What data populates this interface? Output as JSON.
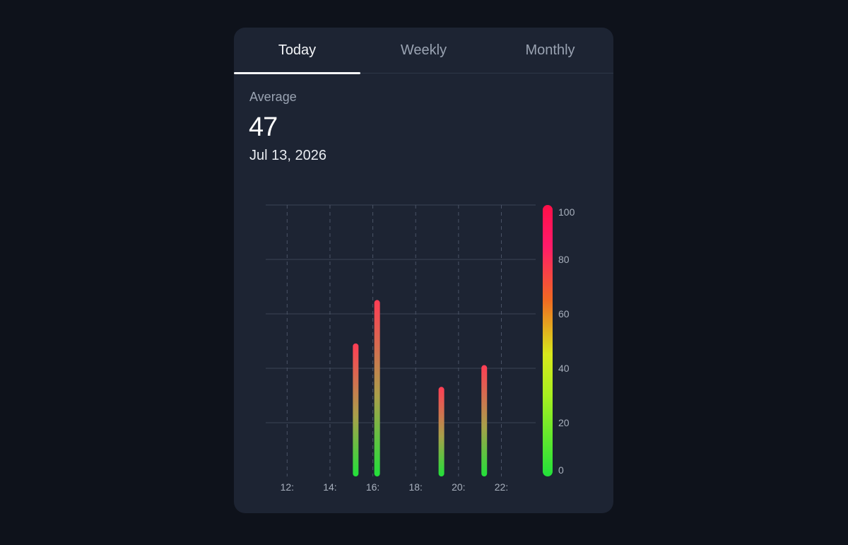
{
  "tabs": [
    {
      "label": "Today",
      "active": true
    },
    {
      "label": "Weekly",
      "active": false
    },
    {
      "label": "Monthly",
      "active": false
    }
  ],
  "summary": {
    "label": "Average",
    "value": "47",
    "date": "Jul 13, 2026"
  },
  "colors": {
    "background": "#0e121b",
    "card": "#1d2433",
    "gradient_low": "#22e03a",
    "gradient_mid": "#c8f020",
    "gradient_orange": "#f07a20",
    "gradient_high": "#ff1050"
  },
  "chart_data": {
    "type": "bar",
    "x_tick_labels": [
      "12:",
      "14:",
      "16:",
      "18:",
      "20:",
      "22:"
    ],
    "x_ticks": [
      12,
      14,
      16,
      18,
      20,
      22
    ],
    "xlim": [
      11,
      23.6
    ],
    "y_tick_labels": [
      "100",
      "80",
      "60",
      "40",
      "20",
      "0"
    ],
    "ylim": [
      0,
      100
    ],
    "grid": true,
    "legend": "color-scale-right",
    "bars": [
      {
        "x": 15.2,
        "value": 49
      },
      {
        "x": 16.2,
        "value": 65
      },
      {
        "x": 19.2,
        "value": 33
      },
      {
        "x": 21.2,
        "value": 41
      }
    ]
  }
}
